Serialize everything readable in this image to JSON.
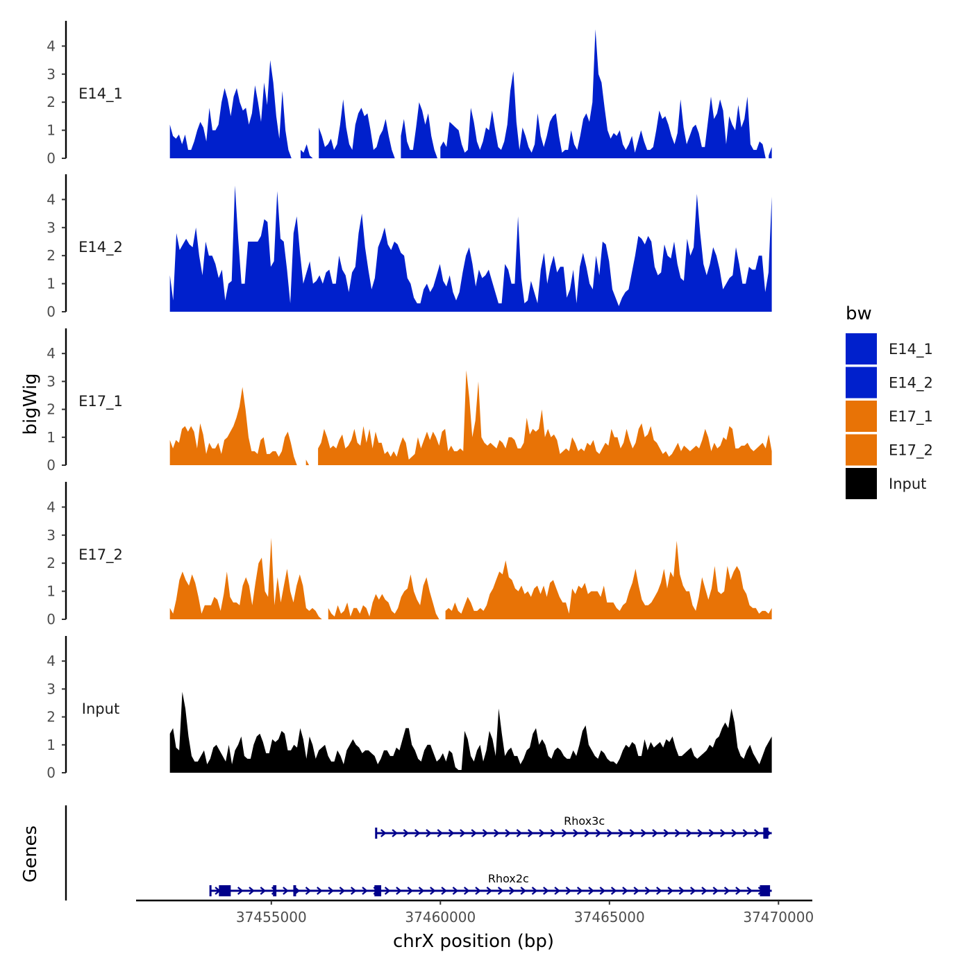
{
  "chart_data": {
    "type": "area",
    "chromosome": "chrX",
    "xlabel": "chrX position (bp)",
    "ylabel_tracks": "bigWig",
    "ylabel_genes": "Genes",
    "xlim": [
      37451000,
      37471000
    ],
    "ylim": [
      0,
      4.9
    ],
    "x_ticks": [
      37455000,
      37460000,
      37465000,
      37470000
    ],
    "x_tick_labels": [
      "37455000",
      "37460000",
      "37465000",
      "37470000"
    ],
    "y_ticks": [
      0,
      1,
      2,
      3,
      4
    ],
    "y_tick_labels": [
      "0",
      "1",
      "2",
      "3",
      "4"
    ],
    "x_start": 37452000,
    "x_end": 37469800,
    "legend": {
      "title": "bw",
      "entries": [
        {
          "label": "E14_1",
          "color": "#0020CC"
        },
        {
          "label": "E14_2",
          "color": "#0020CC"
        },
        {
          "label": "E17_1",
          "color": "#E87306"
        },
        {
          "label": "E17_2",
          "color": "#E87306"
        },
        {
          "label": "Input",
          "color": "#000000"
        }
      ]
    },
    "series": [
      {
        "name": "E14_1",
        "color": "#0020CC",
        "values": [
          1.2,
          0.8,
          0.7,
          0.85,
          0.5,
          0.85,
          0.3,
          0.3,
          0.6,
          1.0,
          1.3,
          1.1,
          0.6,
          1.8,
          1.0,
          1.0,
          1.2,
          2.0,
          2.5,
          2.1,
          1.5,
          2.2,
          2.5,
          2.0,
          1.7,
          1.8,
          1.2,
          1.6,
          2.6,
          2.0,
          1.3,
          2.7,
          1.9,
          3.5,
          2.7,
          1.5,
          0.7,
          2.4,
          1.0,
          0.3,
          0,
          0,
          0,
          0.3,
          0.2,
          0.5,
          0.1,
          0,
          0,
          1.1,
          0.8,
          0.4,
          0.5,
          0.7,
          0.3,
          0.5,
          1.2,
          2.1,
          1.1,
          0.5,
          0.3,
          1.2,
          1.6,
          1.8,
          1.5,
          1.6,
          1.0,
          0.3,
          0.4,
          0.8,
          1.0,
          1.4,
          0.8,
          0.3,
          0,
          0,
          0.8,
          1.4,
          0.6,
          0.3,
          0.3,
          1.1,
          2.0,
          1.7,
          1.2,
          1.6,
          0.8,
          0.3,
          0,
          0.4,
          0.6,
          0.4,
          1.3,
          1.2,
          1.1,
          1.0,
          0.5,
          0.2,
          0.3,
          1.8,
          1.3,
          0.6,
          0.3,
          0.6,
          1.1,
          1.0,
          1.7,
          1.0,
          0.4,
          0.3,
          0.6,
          1.2,
          2.4,
          3.1,
          1.3,
          0.3,
          1.1,
          0.8,
          0.4,
          0.2,
          0.5,
          1.6,
          0.8,
          0.4,
          0.8,
          1.3,
          1.5,
          1.6,
          0.8,
          0.2,
          0.3,
          0.3,
          1.0,
          0.5,
          0.3,
          0.8,
          1.4,
          1.6,
          1.3,
          2.0,
          4.6,
          3.0,
          2.7,
          1.8,
          1.0,
          0.7,
          0.9,
          0.8,
          1.0,
          0.5,
          0.3,
          0.5,
          0.8,
          0.2,
          0.6,
          1.0,
          0.6,
          0.3,
          0.3,
          0.4,
          1.0,
          1.7,
          1.4,
          1.5,
          1.2,
          0.8,
          0.5,
          0.9,
          2.1,
          1.1,
          0.5,
          0.8,
          1.1,
          1.2,
          0.9,
          0.4,
          0.4,
          1.3,
          2.2,
          1.4,
          1.6,
          2.1,
          1.7,
          0.5,
          1.5,
          1.2,
          1.0,
          1.9,
          1.1,
          1.4,
          2.2,
          0.5,
          0.3,
          0.3,
          0.6,
          0.5,
          0.0,
          0.1,
          0.4
        ]
      },
      {
        "name": "E14_2",
        "color": "#0020CC",
        "values": [
          1.3,
          0.4,
          2.8,
          2.2,
          2.4,
          2.6,
          2.4,
          2.3,
          3.0,
          2.0,
          1.3,
          2.5,
          2.0,
          2.0,
          1.7,
          1.2,
          1.5,
          0.4,
          1.0,
          1.1,
          4.5,
          2.6,
          1.0,
          1.0,
          2.5,
          2.5,
          2.5,
          2.5,
          2.7,
          3.3,
          3.2,
          1.6,
          1.8,
          4.3,
          2.6,
          2.5,
          1.5,
          0.3,
          2.8,
          3.4,
          2.1,
          1.0,
          1.4,
          1.8,
          1.0,
          1.1,
          1.3,
          1.0,
          1.4,
          1.5,
          1.0,
          1.0,
          2.0,
          1.5,
          1.3,
          0.7,
          1.4,
          1.6,
          2.8,
          3.5,
          2.3,
          1.5,
          0.8,
          1.2,
          2.3,
          2.6,
          3.0,
          2.4,
          2.2,
          2.5,
          2.4,
          2.1,
          2.0,
          1.2,
          1.0,
          0.5,
          0.3,
          0.3,
          0.8,
          1.0,
          0.7,
          0.9,
          1.3,
          1.7,
          1.1,
          0.9,
          1.3,
          0.7,
          0.4,
          0.7,
          1.4,
          2.0,
          2.3,
          1.7,
          0.9,
          1.5,
          1.2,
          1.3,
          1.5,
          1.1,
          0.7,
          0.3,
          0.3,
          1.7,
          1.5,
          1.0,
          1.0,
          3.4,
          1.2,
          0.3,
          0.4,
          1.1,
          0.7,
          0.3,
          1.5,
          2.1,
          1.0,
          1.6,
          2.0,
          1.4,
          1.6,
          1.6,
          0.5,
          0.8,
          1.5,
          0.3,
          1.6,
          2.1,
          1.6,
          1.0,
          0.8,
          2.0,
          1.3,
          2.5,
          2.4,
          1.8,
          0.8,
          0.5,
          0.2,
          0.5,
          0.7,
          0.8,
          1.4,
          2.0,
          2.7,
          2.6,
          2.4,
          2.7,
          2.5,
          1.6,
          1.3,
          1.4,
          2.4,
          2.0,
          1.9,
          2.5,
          1.7,
          1.2,
          1.1,
          2.6,
          2.0,
          2.3,
          4.2,
          2.8,
          1.7,
          1.3,
          1.7,
          2.3,
          2.0,
          1.5,
          0.8,
          1.0,
          1.2,
          1.3,
          2.3,
          1.7,
          1.0,
          1.0,
          1.6,
          1.5,
          1.5,
          2.0,
          2.0,
          0.7,
          1.4,
          4.1
        ]
      },
      {
        "name": "E17_1",
        "color": "#E87306",
        "values": [
          0.9,
          0.6,
          0.9,
          0.8,
          1.3,
          1.4,
          1.2,
          1.4,
          1.2,
          0.6,
          1.5,
          1.1,
          0.4,
          0.8,
          0.6,
          0.6,
          0.8,
          0.4,
          0.9,
          1.0,
          1.2,
          1.4,
          1.7,
          2.1,
          2.8,
          2.0,
          1.0,
          0.5,
          0.5,
          0.4,
          0.9,
          1.0,
          0.4,
          0.4,
          0.5,
          0.5,
          0.3,
          0.5,
          1.0,
          1.2,
          0.8,
          0.3,
          0,
          0,
          0,
          0.2,
          0.0,
          0,
          0,
          0.6,
          0.8,
          1.3,
          1.0,
          0.6,
          0.7,
          0.6,
          0.9,
          1.1,
          0.6,
          0.7,
          0.9,
          1.3,
          0.8,
          0.7,
          1.4,
          0.8,
          1.3,
          0.6,
          1.2,
          0.8,
          0.8,
          0.4,
          0.5,
          0.3,
          0.5,
          0.3,
          0.7,
          1.0,
          0.8,
          0.2,
          0.3,
          0.4,
          1.0,
          0.6,
          0.9,
          1.2,
          0.9,
          1.2,
          1.0,
          0.7,
          1.2,
          1.3,
          0.5,
          0.7,
          0.5,
          0.5,
          0.6,
          0.5,
          3.4,
          2.4,
          1.0,
          1.6,
          3.0,
          1.0,
          0.8,
          0.7,
          0.8,
          0.7,
          0.6,
          0.9,
          0.8,
          0.6,
          1.0,
          1.0,
          0.9,
          0.6,
          0.6,
          0.8,
          1.7,
          1.1,
          1.3,
          1.2,
          1.3,
          2.0,
          1.0,
          1.3,
          1.0,
          1.1,
          0.9,
          0.4,
          0.5,
          0.6,
          0.5,
          1.0,
          0.8,
          0.5,
          0.6,
          0.5,
          0.8,
          0.7,
          0.9,
          0.5,
          0.4,
          0.6,
          0.8,
          0.7,
          1.3,
          1.0,
          1.0,
          0.6,
          0.8,
          1.3,
          0.9,
          0.6,
          0.8,
          1.3,
          1.5,
          1.0,
          1.1,
          1.4,
          0.9,
          0.8,
          0.6,
          0.4,
          0.5,
          0.3,
          0.4,
          0.6,
          0.8,
          0.5,
          0.7,
          0.6,
          0.5,
          0.6,
          0.7,
          0.6,
          0.9,
          1.3,
          1.0,
          0.5,
          0.8,
          0.6,
          0.7,
          1.0,
          0.9,
          1.4,
          1.3,
          0.6,
          0.6,
          0.7,
          0.7,
          0.8,
          0.6,
          0.5,
          0.6,
          0.7,
          0.8,
          0.6,
          1.1,
          0.5
        ]
      },
      {
        "name": "E17_2",
        "color": "#E87306",
        "values": [
          0.4,
          0.2,
          0.7,
          1.4,
          1.7,
          1.4,
          1.2,
          1.6,
          1.3,
          0.8,
          0.2,
          0.5,
          0.5,
          0.5,
          0.8,
          0.7,
          0.3,
          0.9,
          1.7,
          0.8,
          0.6,
          0.6,
          0.5,
          1.2,
          1.5,
          1.2,
          0.5,
          1.3,
          2.0,
          2.2,
          1.0,
          0.8,
          2.9,
          0.5,
          1.5,
          0.6,
          1.2,
          1.8,
          1.0,
          0.6,
          1.2,
          1.6,
          1.2,
          0.4,
          0.3,
          0.4,
          0.3,
          0.1,
          0,
          0,
          0.4,
          0.2,
          0.1,
          0.5,
          0.2,
          0.3,
          0.6,
          0.1,
          0.4,
          0.4,
          0.2,
          0.5,
          0.4,
          0.1,
          0.6,
          0.9,
          0.7,
          0.9,
          0.7,
          0.6,
          0.3,
          0.2,
          0.4,
          0.8,
          1.0,
          1.1,
          1.6,
          1.0,
          0.7,
          0.5,
          1.2,
          1.5,
          1.0,
          0.6,
          0.2,
          0,
          0,
          0.3,
          0.4,
          0.3,
          0.6,
          0.3,
          0.2,
          0.5,
          0.8,
          0.6,
          0.3,
          0.3,
          0.4,
          0.3,
          0.5,
          0.9,
          1.1,
          1.4,
          1.7,
          1.6,
          2.1,
          1.5,
          1.4,
          1.1,
          1.0,
          1.2,
          0.9,
          1.0,
          0.8,
          1.1,
          1.2,
          0.9,
          1.2,
          0.8,
          1.3,
          1.4,
          1.1,
          0.8,
          0.6,
          0.6,
          0.2,
          1.1,
          0.9,
          1.2,
          1.1,
          1.3,
          0.9,
          1.0,
          1.0,
          1.0,
          0.8,
          1.2,
          0.6,
          0.6,
          0.6,
          0.4,
          0.3,
          0.5,
          0.6,
          1.0,
          1.3,
          1.8,
          1.2,
          0.7,
          0.5,
          0.5,
          0.6,
          0.8,
          1.0,
          1.3,
          1.8,
          1.1,
          1.7,
          1.5,
          2.8,
          1.6,
          1.2,
          1.0,
          1.0,
          0.5,
          0.3,
          0.8,
          1.5,
          1.1,
          0.7,
          1.1,
          1.9,
          1.0,
          0.9,
          1.0,
          1.9,
          1.4,
          1.7,
          1.9,
          1.7,
          1.1,
          0.9,
          0.5,
          0.4,
          0.4,
          0.2,
          0.3,
          0.3,
          0.2,
          0.4
        ]
      },
      {
        "name": "Input",
        "color": "#000000",
        "values": [
          1.4,
          1.6,
          0.9,
          0.8,
          2.9,
          2.3,
          1.3,
          0.6,
          0.4,
          0.4,
          0.6,
          0.8,
          0.3,
          0.5,
          0.9,
          1.0,
          0.8,
          0.6,
          0.4,
          1.0,
          0.3,
          0.8,
          1.0,
          1.3,
          0.6,
          0.5,
          0.5,
          1.0,
          1.3,
          1.4,
          1.1,
          0.7,
          0.7,
          1.2,
          1.1,
          1.2,
          1.5,
          1.4,
          0.8,
          0.8,
          1.0,
          0.9,
          1.6,
          1.2,
          0.5,
          1.3,
          1.0,
          0.5,
          0.8,
          0.9,
          1.0,
          0.6,
          0.4,
          0.4,
          0.8,
          0.6,
          0.3,
          0.8,
          1.0,
          1.2,
          1.0,
          0.9,
          0.7,
          0.8,
          0.8,
          0.7,
          0.6,
          0.3,
          0.5,
          0.8,
          0.8,
          0.6,
          0.6,
          0.9,
          0.8,
          1.2,
          1.6,
          1.6,
          1.0,
          0.8,
          0.5,
          0.4,
          0.8,
          1.0,
          1.0,
          0.7,
          0.4,
          0.5,
          0.7,
          0.4,
          0.8,
          0.7,
          0.2,
          0.1,
          0.1,
          1.5,
          1.2,
          0.6,
          0.4,
          0.8,
          1.0,
          0.4,
          0.8,
          1.5,
          1.2,
          0.6,
          2.3,
          1.4,
          0.6,
          0.8,
          0.9,
          0.6,
          0.6,
          0.3,
          0.5,
          0.8,
          0.9,
          1.4,
          1.6,
          1.0,
          1.2,
          1.0,
          0.6,
          0.5,
          0.8,
          0.9,
          0.8,
          0.6,
          0.5,
          0.5,
          0.8,
          0.6,
          1.0,
          1.5,
          1.7,
          1.0,
          0.8,
          0.6,
          0.5,
          0.8,
          0.7,
          0.5,
          0.4,
          0.4,
          0.3,
          0.5,
          0.8,
          1.0,
          0.9,
          1.1,
          1.0,
          0.6,
          0.6,
          1.2,
          0.8,
          1.1,
          0.9,
          1.0,
          1.1,
          0.9,
          1.2,
          1.1,
          1.3,
          0.9,
          0.6,
          0.6,
          0.7,
          0.8,
          0.9,
          0.6,
          0.5,
          0.6,
          0.7,
          0.8,
          1.0,
          0.9,
          1.2,
          1.3,
          1.6,
          1.8,
          1.6,
          2.3,
          1.8,
          0.9,
          0.6,
          0.5,
          0.8,
          1.0,
          0.7,
          0.5,
          0.3,
          0.6,
          0.9,
          1.1,
          1.3
        ]
      }
    ],
    "genes": [
      {
        "name": "Rhox3c",
        "start": 37458100,
        "end": 37469800,
        "strand": "+",
        "row": 1,
        "exons": [
          [
            37469550,
            37469700
          ]
        ]
      },
      {
        "name": "Rhox2c",
        "start": 37453200,
        "end": 37469800,
        "strand": "+",
        "row": 2,
        "exons": [
          [
            37453450,
            37453800
          ],
          [
            37455050,
            37455150
          ],
          [
            37455650,
            37455700
          ],
          [
            37458050,
            37458250
          ],
          [
            37469450,
            37469750
          ]
        ]
      }
    ]
  }
}
